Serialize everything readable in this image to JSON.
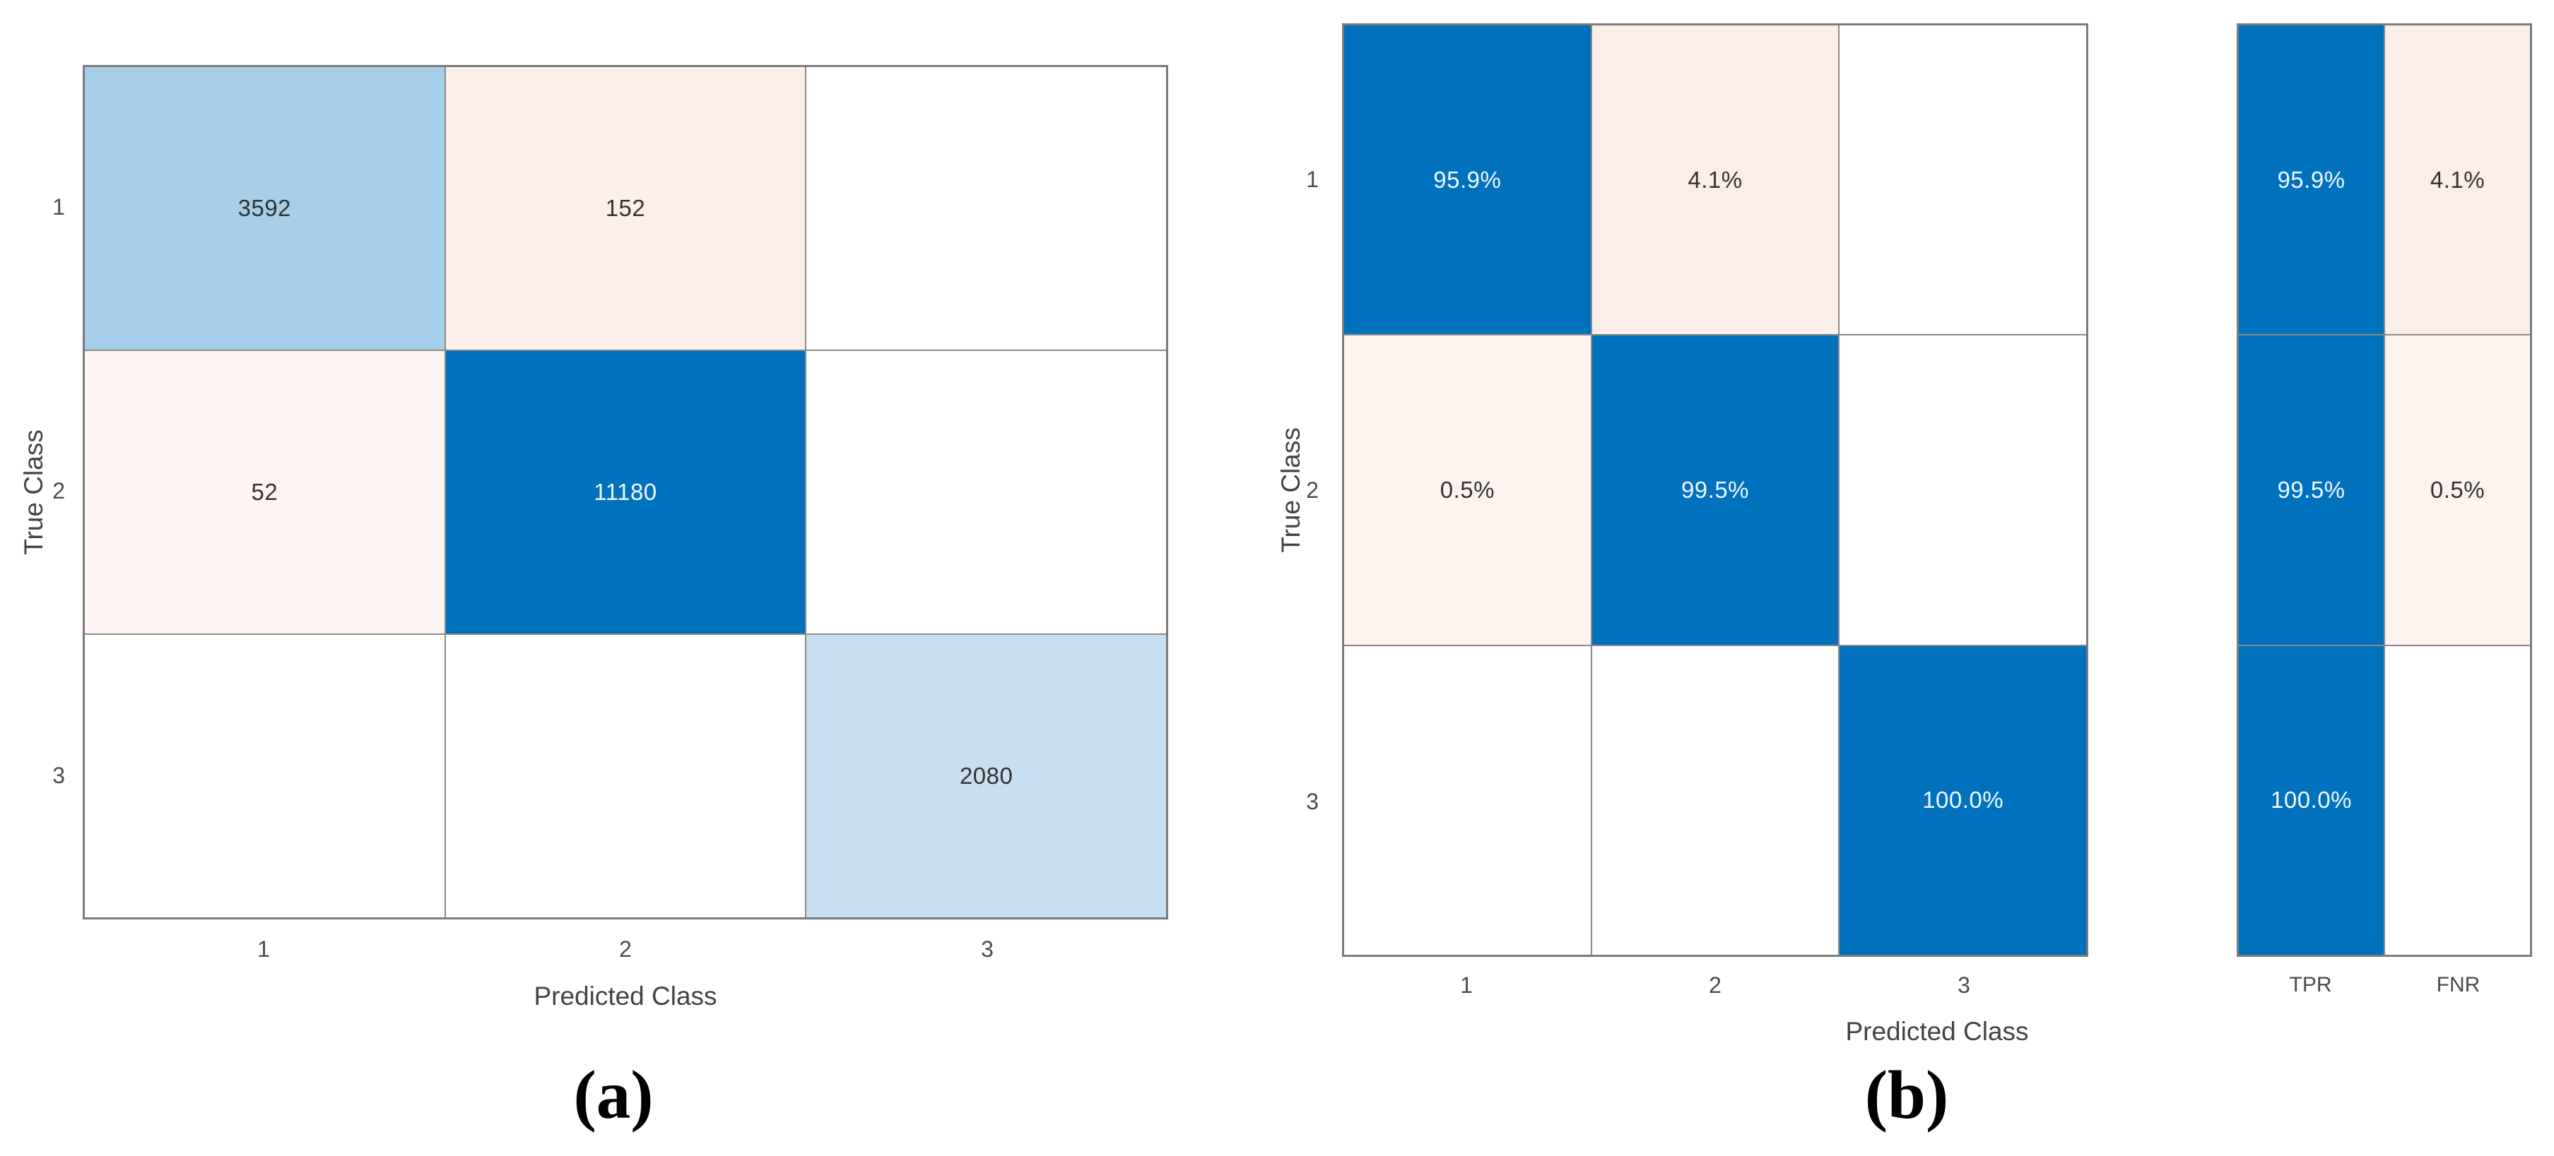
{
  "page": {
    "background": "#ffffff"
  },
  "colors": {
    "diagonal_blue": "#0072bd",
    "light_blue_strong": "#a5cee9",
    "light_blue_soft": "#c8def1",
    "pink_strong": "#fbeee7",
    "pink_medium": "#fcefe9",
    "pink_soft": "#fdf3ef",
    "grid_line": "#8a8a8a",
    "axis_text": "#434343",
    "tick_text": "#4b4b4b"
  },
  "chart_data": [
    {
      "id": "a",
      "type": "heatmap",
      "chart_kind": "confusion-matrix",
      "panel_label": "(a)",
      "xlabel": "Predicted Class",
      "ylabel": "True Class",
      "x_categories": [
        "1",
        "2",
        "3"
      ],
      "y_categories": [
        "1",
        "2",
        "3"
      ],
      "values": [
        [
          3592,
          152,
          null
        ],
        [
          52,
          11180,
          null
        ],
        [
          null,
          null,
          2080
        ]
      ],
      "cell_labels": [
        [
          "3592",
          "152",
          ""
        ],
        [
          "52",
          "11180",
          ""
        ],
        [
          "",
          "",
          "2080"
        ]
      ],
      "cell_bg": [
        [
          "#a5cee9",
          "#fcefe9",
          "#ffffff"
        ],
        [
          "#fef4f1",
          "#0072bd",
          "#ffffff"
        ],
        [
          "#ffffff",
          "#ffffff",
          "#c8def1"
        ]
      ],
      "cell_fg": [
        [
          "#333333",
          "#333333",
          "#333333"
        ],
        [
          "#333333",
          "#f2f7fc",
          "#333333"
        ],
        [
          "#333333",
          "#333333",
          "#333333"
        ]
      ],
      "grid": true,
      "legend": "none"
    },
    {
      "id": "b",
      "type": "heatmap",
      "chart_kind": "confusion-matrix",
      "normalization": "row-percentage",
      "panel_label": "(b)",
      "xlabel": "Predicted Class",
      "ylabel": "True Class",
      "x_categories": [
        "1",
        "2",
        "3"
      ],
      "y_categories": [
        "1",
        "2",
        "3"
      ],
      "values": [
        [
          95.9,
          4.1,
          null
        ],
        [
          0.5,
          99.5,
          null
        ],
        [
          null,
          null,
          100.0
        ]
      ],
      "cell_labels": [
        [
          "95.9%",
          "4.1%",
          ""
        ],
        [
          "0.5%",
          "99.5%",
          ""
        ],
        [
          "",
          "",
          "100.0%"
        ]
      ],
      "cell_bg": [
        [
          "#0072bd",
          "#fbeee7",
          "#ffffff"
        ],
        [
          "#fdf3ef",
          "#0072bd",
          "#ffffff"
        ],
        [
          "#ffffff",
          "#ffffff",
          "#0072bd"
        ]
      ],
      "cell_fg": [
        [
          "#f2f7fc",
          "#333333",
          "#333333"
        ],
        [
          "#333333",
          "#f2f7fc",
          "#333333"
        ],
        [
          "#333333",
          "#333333",
          "#f2f7fc"
        ]
      ],
      "grid": true,
      "legend": "none",
      "row_summary": {
        "columns": [
          "TPR",
          "FNR"
        ],
        "values": [
          [
            95.9,
            4.1
          ],
          [
            99.5,
            0.5
          ],
          [
            100.0,
            null
          ]
        ],
        "cell_labels": [
          [
            "95.9%",
            "4.1%"
          ],
          [
            "99.5%",
            "0.5%"
          ],
          [
            "100.0%",
            ""
          ]
        ],
        "cell_bg": [
          [
            "#0072bd",
            "#fbeee7"
          ],
          [
            "#0072bd",
            "#fdf3ef"
          ],
          [
            "#0072bd",
            "#ffffff"
          ]
        ],
        "cell_fg": [
          [
            "#f2f7fc",
            "#333333"
          ],
          [
            "#f2f7fc",
            "#333333"
          ],
          [
            "#f2f7fc",
            "#333333"
          ]
        ]
      }
    }
  ]
}
